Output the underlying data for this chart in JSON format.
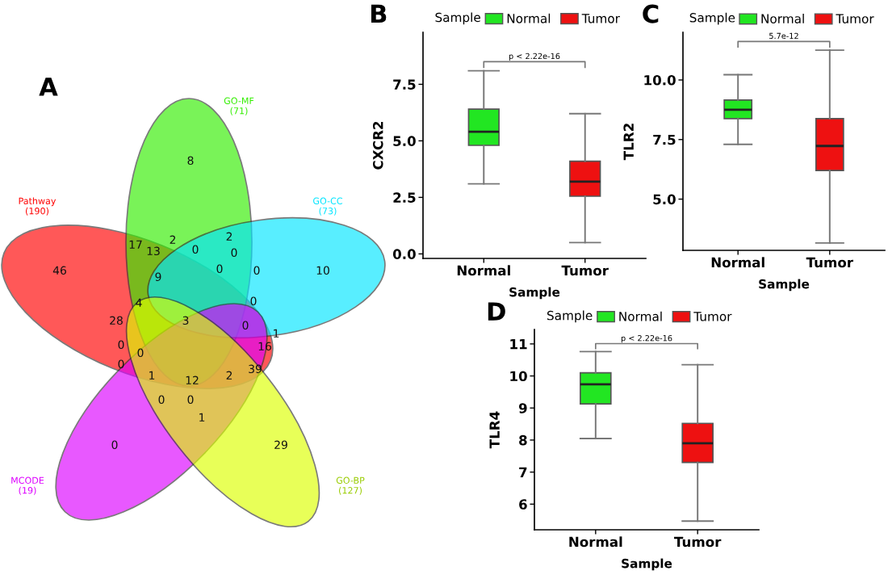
{
  "chart_data": [
    {
      "type": "other",
      "title": "A",
      "categories": [
        "Pathway\n(190)",
        "GO-MF\n(71)",
        "GO-CC\n(73)",
        "MCODE\n(19)",
        "GO-BP\n(127)"
      ],
      "colors": [
        "#ff0000",
        "#33ee00",
        "#00e5ff",
        "#dd00ff",
        "#ddff00"
      ],
      "annotations": [
        "8",
        "2",
        "2",
        "17",
        "13",
        "0",
        "0",
        "46",
        "9",
        "0",
        "0",
        "10",
        "4",
        "28",
        "3",
        "0",
        "0",
        "1",
        "0",
        "0",
        "16",
        "0",
        "1",
        "12",
        "2",
        "39",
        "0",
        "0",
        "1",
        "0",
        "29"
      ]
    },
    {
      "type": "box",
      "title": "B",
      "xlabel": "Sample",
      "ylabel": "CXCR2",
      "legend_title": "Sample",
      "legend": "top",
      "categories": [
        "Normal",
        "Tumor"
      ],
      "ylim": [
        -0.2,
        9.8
      ],
      "yticks": [
        {
          "value": 0,
          "label": "0.0"
        },
        2.5,
        {
          "value": 5,
          "label": "5.0"
        },
        7.5
      ],
      "series": [
        {
          "name": "Normal",
          "color": "#22e622",
          "boxes": [
            {
              "low": 3.1,
              "q1": 4.8,
              "median": 5.4,
              "q3": 6.4,
              "high": 8.1
            },
            null
          ]
        },
        {
          "name": "Tumor",
          "color": "#ee1111",
          "boxes": [
            null,
            {
              "low": 0.5,
              "q1": 2.55,
              "median": 3.2,
              "q3": 4.1,
              "high": 6.2
            }
          ]
        }
      ],
      "annotations": [
        "p < 2.22e-16"
      ]
    },
    {
      "type": "box",
      "title": "C",
      "xlabel": "Sample",
      "ylabel": "TLR2",
      "legend_title": "Sample",
      "legend": "top",
      "categories": [
        "Normal",
        "Tumor"
      ],
      "ylim": [
        2.85,
        12
      ],
      "yticks": [
        {
          "value": 5,
          "label": "5.0"
        },
        7.5,
        {
          "value": 10,
          "label": "10.0"
        }
      ],
      "series": [
        {
          "name": "Normal",
          "color": "#22e622",
          "boxes": [
            {
              "low": 7.3,
              "q1": 8.38,
              "median": 8.75,
              "q3": 9.16,
              "high": 10.22
            },
            null
          ]
        },
        {
          "name": "Tumor",
          "color": "#ee1111",
          "boxes": [
            null,
            {
              "low": 3.16,
              "q1": 6.2,
              "median": 7.23,
              "q3": 8.38,
              "high": 11.25
            }
          ]
        }
      ],
      "annotations": [
        "5.7e-12"
      ]
    },
    {
      "type": "box",
      "title": "D",
      "xlabel": "Sample",
      "ylabel": "TLR4",
      "legend_title": "Sample",
      "legend": "top",
      "categories": [
        "Normal",
        "Tumor"
      ],
      "ylim": [
        5.2,
        11.45
      ],
      "yticks": [
        6,
        7,
        8,
        9,
        10,
        11
      ],
      "series": [
        {
          "name": "Normal",
          "color": "#22e622",
          "boxes": [
            {
              "low": 8.05,
              "q1": 9.13,
              "median": 9.74,
              "q3": 10.1,
              "high": 10.76
            },
            null
          ]
        },
        {
          "name": "Tumor",
          "color": "#ee1111",
          "boxes": [
            null,
            {
              "low": 5.47,
              "q1": 7.3,
              "median": 7.9,
              "q3": 8.52,
              "high": 10.35
            }
          ]
        }
      ],
      "annotations": [
        "p < 2.22e-16"
      ]
    }
  ]
}
